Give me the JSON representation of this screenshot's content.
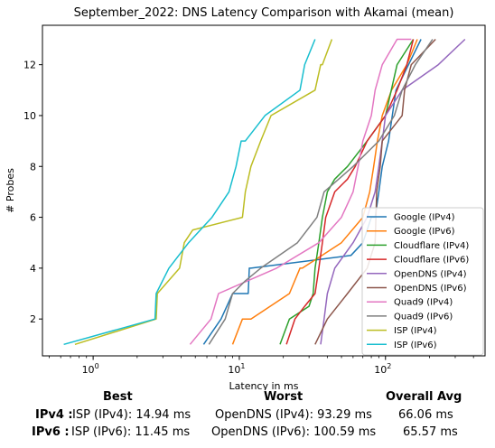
{
  "chart_data": {
    "type": "line",
    "title": "September_2022: DNS Latency Comparison with Akamai (mean)",
    "xlabel": "Latency in ms",
    "ylabel": "# Probes",
    "xscale": "log",
    "xlim": [
      0.45,
      480
    ],
    "ylim": [
      0.55,
      13.55
    ],
    "xticks": [
      {
        "value": 1,
        "label": "10^0"
      },
      {
        "value": 10,
        "label": "10^1"
      },
      {
        "value": 100,
        "label": "10^2"
      }
    ],
    "yticks": [
      2,
      4,
      6,
      8,
      10,
      12
    ],
    "grid": false,
    "legend_position": "lower-right",
    "series": [
      {
        "name": "Google (IPv4)",
        "color": "#1f77b4",
        "x": [
          5.7,
          7.5,
          9.0,
          11.5,
          11.6,
          11.7,
          11.8,
          11.9,
          12.0,
          58.0,
          70.0,
          80.0,
          85.0,
          90.0,
          95.0,
          105.0,
          118.0,
          175.0
        ],
        "y": [
          1,
          2,
          3,
          3,
          3.5,
          4,
          4,
          4,
          4,
          4.5,
          5,
          6,
          6,
          7,
          8,
          9,
          11,
          13
        ]
      },
      {
        "name": "Google (IPv6)",
        "color": "#ff7f0e",
        "x": [
          9.0,
          10.5,
          12.0,
          22.0,
          26.0,
          27.0,
          50.0,
          70.0,
          78.0,
          83.0,
          88.0,
          95.0,
          110.0,
          140.0,
          165.0
        ],
        "y": [
          1,
          2,
          2,
          3,
          4,
          4,
          5,
          6,
          7,
          8,
          9,
          10,
          11,
          12,
          13
        ]
      },
      {
        "name": "Cloudflare (IPv4)",
        "color": "#2ca02c",
        "x": [
          19.0,
          22.0,
          30.0,
          32.0,
          33.0,
          35.0,
          37.0,
          40.0,
          45.0,
          55.0,
          75.0,
          100.0,
          120.0,
          155.0
        ],
        "y": [
          1,
          2,
          2.5,
          3,
          4,
          5,
          6,
          7,
          7.5,
          8,
          9,
          10,
          12,
          13
        ]
      },
      {
        "name": "Cloudflare (IPv6)",
        "color": "#d62728",
        "x": [
          21.0,
          24.0,
          28.0,
          33.0,
          35.0,
          37.0,
          39.0,
          45.0,
          55.0,
          62.0,
          75.0,
          100.0,
          120.0,
          140.0,
          155.0
        ],
        "y": [
          1,
          2,
          2.5,
          3,
          4,
          5,
          6,
          7,
          7.5,
          8,
          9,
          10,
          11,
          12,
          13
        ]
      },
      {
        "name": "OpenDNS (IPv4)",
        "color": "#9467bd",
        "x": [
          36.0,
          38.0,
          40.0,
          45.0,
          60.0,
          75.0,
          85.0,
          90.0,
          95.0,
          100.0,
          130.0,
          230.0,
          350.0
        ],
        "y": [
          1,
          2,
          3,
          4,
          5,
          6,
          7,
          8,
          9,
          10,
          11,
          12,
          13
        ]
      },
      {
        "name": "OpenDNS (IPv6)",
        "color": "#8c564b",
        "x": [
          33.0,
          40.0,
          55.0,
          75.0,
          85.0,
          86.0,
          87.0,
          92.0,
          95.0,
          130.0,
          135.0,
          150.0,
          220.0
        ],
        "y": [
          1,
          2,
          3,
          4,
          5,
          6,
          7,
          8,
          9,
          10,
          11,
          12,
          13
        ]
      },
      {
        "name": "Quad9 (IPv4)",
        "color": "#e377c2",
        "x": [
          4.6,
          6.4,
          7.2,
          18.0,
          35.0,
          50.0,
          60.0,
          65.0,
          70.0,
          80.0,
          85.0,
          95.0,
          120.0,
          150.0
        ],
        "y": [
          1,
          2,
          3,
          4,
          5,
          6,
          7,
          8,
          9,
          10,
          11,
          12,
          13,
          13
        ]
      },
      {
        "name": "Quad9 (IPv6)",
        "color": "#7f7f7f",
        "x": [
          6.2,
          8.0,
          9.0,
          11.0,
          14.0,
          25.0,
          34.0,
          38.0,
          60.0,
          90.0,
          115.0,
          130.0,
          160.0,
          210.0
        ],
        "y": [
          1,
          2,
          3,
          3.5,
          4,
          5,
          6,
          7,
          8,
          9,
          10,
          11,
          12,
          13
        ]
      },
      {
        "name": "ISP (IPv4)",
        "color": "#bcbd22",
        "x": [
          0.75,
          2.7,
          2.75,
          3.9,
          4.2,
          4.8,
          10.5,
          11.0,
          12.0,
          14.0,
          16.5,
          33.0,
          36.0,
          37.0,
          43.0
        ],
        "y": [
          1,
          2,
          3,
          4,
          5,
          5.5,
          6,
          7,
          8,
          9,
          10,
          11,
          12,
          12,
          13
        ]
      },
      {
        "name": "ISP (IPv6)",
        "color": "#17becf",
        "x": [
          0.63,
          2.65,
          2.7,
          3.3,
          4.5,
          6.5,
          8.5,
          9.5,
          10.3,
          11.0,
          15.0,
          26.0,
          28.0,
          33.0
        ],
        "y": [
          1,
          2,
          3,
          4,
          5,
          6,
          7,
          8,
          9,
          9,
          10,
          11,
          12,
          13
        ]
      }
    ]
  },
  "summary": {
    "headers": {
      "best": "Best",
      "worst": "Worst",
      "overall": "Overall Avg"
    },
    "rows": [
      {
        "label": "IPv4 :",
        "best": "ISP (IPv4): 14.94 ms",
        "worst": "OpenDNS (IPv4): 93.29 ms",
        "overall": "66.06 ms"
      },
      {
        "label": "IPv6 :",
        "best": "ISP (IPv6): 11.45 ms",
        "worst": "OpenDNS (IPv6): 100.59 ms",
        "overall": "65.57 ms"
      }
    ]
  }
}
